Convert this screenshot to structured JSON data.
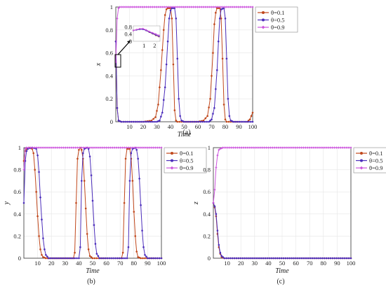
{
  "figure": {
    "captions": [
      "(a)",
      "(b)",
      "(c)"
    ]
  },
  "colors": {
    "theta_0_1": "#c0471b",
    "theta_0_5": "#4b2dbb",
    "theta_0_9": "#cc55dd"
  },
  "chart_data": [
    {
      "id": "a",
      "type": "line",
      "xlabel": "Time",
      "ylabel": "x",
      "xlim": [
        0,
        100
      ],
      "ylim": [
        0,
        1
      ],
      "xticks": [
        "10",
        "20",
        "30",
        "40",
        "50",
        "60",
        "70",
        "80",
        "90",
        "100"
      ],
      "yticks": [
        "0",
        "0.2",
        "0.4",
        "0.6",
        "0.8",
        "1"
      ],
      "grid": true,
      "legend_position": "top-right",
      "caption": "(a)",
      "series": [
        {
          "name": "θ=0.1",
          "color": "#c0471b",
          "points": [
            [
              0,
              0.7
            ],
            [
              1,
              0.12
            ],
            [
              2,
              0.01
            ],
            [
              4,
              0.0
            ],
            [
              20,
              0.0
            ],
            [
              26,
              0.01
            ],
            [
              29,
              0.04
            ],
            [
              31,
              0.15
            ],
            [
              33,
              0.45
            ],
            [
              35,
              0.8
            ],
            [
              36,
              0.93
            ],
            [
              37,
              0.98
            ],
            [
              38,
              0.99
            ],
            [
              40,
              0.99
            ],
            [
              41,
              0.9
            ],
            [
              42,
              0.5
            ],
            [
              43,
              0.1
            ],
            [
              44,
              0.01
            ],
            [
              45,
              0.0
            ],
            [
              60,
              0.0
            ],
            [
              64,
              0.01
            ],
            [
              67,
              0.05
            ],
            [
              69,
              0.2
            ],
            [
              71,
              0.6
            ],
            [
              72,
              0.85
            ],
            [
              73,
              0.95
            ],
            [
              74,
              0.99
            ],
            [
              76,
              0.99
            ],
            [
              77,
              0.9
            ],
            [
              78,
              0.55
            ],
            [
              79,
              0.15
            ],
            [
              80,
              0.02
            ],
            [
              81,
              0.0
            ],
            [
              96,
              0.0
            ],
            [
              98,
              0.02
            ],
            [
              100,
              0.08
            ]
          ]
        },
        {
          "name": "θ=0.5",
          "color": "#4b2dbb",
          "points": [
            [
              0,
              0.7
            ],
            [
              1,
              0.12
            ],
            [
              2,
              0.01
            ],
            [
              4,
              0.0
            ],
            [
              30,
              0.0
            ],
            [
              32,
              0.01
            ],
            [
              34,
              0.08
            ],
            [
              36,
              0.3
            ],
            [
              38,
              0.7
            ],
            [
              39,
              0.9
            ],
            [
              40,
              0.97
            ],
            [
              41,
              0.99
            ],
            [
              43,
              0.99
            ],
            [
              44,
              0.9
            ],
            [
              45,
              0.55
            ],
            [
              46,
              0.2
            ],
            [
              47,
              0.05
            ],
            [
              48,
              0.01
            ],
            [
              50,
              0.0
            ],
            [
              68,
              0.0
            ],
            [
              70,
              0.02
            ],
            [
              72,
              0.12
            ],
            [
              74,
              0.45
            ],
            [
              75,
              0.7
            ],
            [
              76,
              0.9
            ],
            [
              77,
              0.98
            ],
            [
              79,
              0.99
            ],
            [
              80,
              0.9
            ],
            [
              81,
              0.55
            ],
            [
              82,
              0.2
            ],
            [
              83,
              0.05
            ],
            [
              84,
              0.01
            ],
            [
              86,
              0.0
            ],
            [
              100,
              0.0
            ]
          ]
        },
        {
          "name": "θ=0.9",
          "color": "#cc55dd",
          "points": [
            [
              0,
              0.52
            ],
            [
              1,
              0.9
            ],
            [
              2,
              0.99
            ],
            [
              3,
              1.0
            ],
            [
              100,
              1.0
            ]
          ]
        }
      ],
      "inset": {
        "xticks": [
          "1",
          "2"
        ],
        "yticks": [
          "0",
          "0.4",
          "0.8"
        ],
        "xlim": [
          0,
          2.5
        ],
        "ylim": [
          0,
          0.85
        ],
        "series": [
          {
            "name": "θ=0.1",
            "points": [
              [
                0,
                0.6
              ],
              [
                0.3,
                0.64
              ],
              [
                0.6,
                0.68
              ],
              [
                0.9,
                0.68
              ],
              [
                1.2,
                0.6
              ],
              [
                1.5,
                0.5
              ],
              [
                1.8,
                0.42
              ],
              [
                2.1,
                0.33
              ],
              [
                2.4,
                0.26
              ]
            ]
          },
          {
            "name": "θ=0.5",
            "points": [
              [
                0,
                0.6
              ],
              [
                0.3,
                0.63
              ],
              [
                0.6,
                0.66
              ],
              [
                0.9,
                0.66
              ],
              [
                1.2,
                0.6
              ],
              [
                1.5,
                0.51
              ],
              [
                1.8,
                0.43
              ],
              [
                2.1,
                0.35
              ],
              [
                2.4,
                0.28
              ]
            ]
          },
          {
            "name": "θ=0.9",
            "points": [
              [
                0,
                0.6
              ],
              [
                0.3,
                0.65
              ],
              [
                0.6,
                0.69
              ],
              [
                0.9,
                0.7
              ],
              [
                1.2,
                0.63
              ],
              [
                1.5,
                0.54
              ],
              [
                1.8,
                0.47
              ],
              [
                2.1,
                0.4
              ],
              [
                2.4,
                0.33
              ]
            ]
          }
        ]
      }
    },
    {
      "id": "b",
      "type": "line",
      "xlabel": "Time",
      "ylabel": "y",
      "xlim": [
        0,
        100
      ],
      "ylim": [
        0,
        1
      ],
      "xticks": [
        "10",
        "20",
        "30",
        "40",
        "50",
        "60",
        "70",
        "80",
        "90",
        "100"
      ],
      "yticks": [
        "0",
        "0.2",
        "0.4",
        "0.6",
        "0.8",
        "1"
      ],
      "grid": true,
      "legend_position": "top-right",
      "caption": "(b)",
      "series": [
        {
          "name": "θ=0.1",
          "color": "#c0471b",
          "points": [
            [
              0,
              0.88
            ],
            [
              1,
              0.97
            ],
            [
              2,
              0.99
            ],
            [
              4,
              1.0
            ],
            [
              6,
              0.99
            ],
            [
              7,
              0.95
            ],
            [
              8,
              0.8
            ],
            [
              9,
              0.6
            ],
            [
              10,
              0.38
            ],
            [
              11,
              0.2
            ],
            [
              12,
              0.08
            ],
            [
              13,
              0.03
            ],
            [
              14,
              0.01
            ],
            [
              16,
              0.0
            ],
            [
              36,
              0.0
            ],
            [
              37,
              0.05
            ],
            [
              38,
              0.5
            ],
            [
              39,
              0.9
            ],
            [
              40,
              0.98
            ],
            [
              41,
              1.0
            ],
            [
              42,
              0.98
            ],
            [
              43,
              0.9
            ],
            [
              44,
              0.7
            ],
            [
              45,
              0.45
            ],
            [
              46,
              0.22
            ],
            [
              47,
              0.08
            ],
            [
              48,
              0.02
            ],
            [
              50,
              0.0
            ],
            [
              71,
              0.0
            ],
            [
              72,
              0.05
            ],
            [
              73,
              0.5
            ],
            [
              74,
              0.9
            ],
            [
              75,
              0.99
            ],
            [
              77,
              0.99
            ],
            [
              78,
              0.9
            ],
            [
              79,
              0.7
            ],
            [
              80,
              0.42
            ],
            [
              81,
              0.2
            ],
            [
              82,
              0.06
            ],
            [
              83,
              0.01
            ],
            [
              85,
              0.0
            ],
            [
              100,
              0.0
            ]
          ]
        },
        {
          "name": "θ=0.5",
          "color": "#4b2dbb",
          "points": [
            [
              0,
              0.5
            ],
            [
              1,
              0.88
            ],
            [
              2,
              0.97
            ],
            [
              3,
              0.99
            ],
            [
              6,
              1.0
            ],
            [
              9,
              0.99
            ],
            [
              10,
              0.93
            ],
            [
              11,
              0.78
            ],
            [
              12,
              0.55
            ],
            [
              13,
              0.35
            ],
            [
              14,
              0.18
            ],
            [
              15,
              0.08
            ],
            [
              16,
              0.03
            ],
            [
              18,
              0.0
            ],
            [
              40,
              0.0
            ],
            [
              41,
              0.1
            ],
            [
              42,
              0.7
            ],
            [
              43,
              0.95
            ],
            [
              44,
              0.99
            ],
            [
              46,
              1.0
            ],
            [
              47,
              0.99
            ],
            [
              48,
              0.92
            ],
            [
              49,
              0.75
            ],
            [
              50,
              0.52
            ],
            [
              51,
              0.3
            ],
            [
              52,
              0.13
            ],
            [
              53,
              0.04
            ],
            [
              55,
              0.0
            ],
            [
              75,
              0.0
            ],
            [
              76,
              0.1
            ],
            [
              77,
              0.7
            ],
            [
              78,
              0.95
            ],
            [
              79,
              0.99
            ],
            [
              81,
              1.0
            ],
            [
              82,
              0.98
            ],
            [
              83,
              0.9
            ],
            [
              84,
              0.72
            ],
            [
              85,
              0.48
            ],
            [
              86,
              0.25
            ],
            [
              87,
              0.1
            ],
            [
              88,
              0.03
            ],
            [
              90,
              0.0
            ],
            [
              100,
              0.0
            ]
          ]
        },
        {
          "name": "θ=0.9",
          "color": "#cc55dd",
          "points": [
            [
              0,
              0.8
            ],
            [
              1,
              0.99
            ],
            [
              2,
              1.0
            ],
            [
              100,
              1.0
            ]
          ]
        }
      ]
    },
    {
      "id": "c",
      "type": "line",
      "xlabel": "Time",
      "ylabel": "z",
      "xlim": [
        0,
        100
      ],
      "ylim": [
        0,
        1
      ],
      "xticks": [
        "10",
        "20",
        "30",
        "40",
        "50",
        "60",
        "70",
        "80",
        "90",
        "100"
      ],
      "yticks": [
        "0",
        "0.2",
        "0.4",
        "0.6",
        "0.8",
        "1"
      ],
      "grid": true,
      "legend_position": "top-right",
      "caption": "(c)",
      "series": [
        {
          "name": "θ=0.1",
          "color": "#c0471b",
          "points": [
            [
              0,
              0.5
            ],
            [
              1,
              0.46
            ],
            [
              2,
              0.38
            ],
            [
              3,
              0.22
            ],
            [
              4,
              0.1
            ],
            [
              5,
              0.04
            ],
            [
              6,
              0.01
            ],
            [
              8,
              0.0
            ],
            [
              100,
              0.0
            ]
          ]
        },
        {
          "name": "θ=0.5",
          "color": "#4b2dbb",
          "points": [
            [
              0,
              0.5
            ],
            [
              1,
              0.47
            ],
            [
              2,
              0.4
            ],
            [
              3,
              0.25
            ],
            [
              4,
              0.12
            ],
            [
              5,
              0.05
            ],
            [
              6,
              0.02
            ],
            [
              8,
              0.0
            ],
            [
              100,
              0.0
            ]
          ]
        },
        {
          "name": "θ=0.9",
          "color": "#cc55dd",
          "points": [
            [
              0,
              0.5
            ],
            [
              1,
              0.62
            ],
            [
              2,
              0.82
            ],
            [
              3,
              0.93
            ],
            [
              4,
              0.98
            ],
            [
              5,
              0.99
            ],
            [
              7,
              1.0
            ],
            [
              100,
              1.0
            ]
          ]
        }
      ]
    }
  ]
}
